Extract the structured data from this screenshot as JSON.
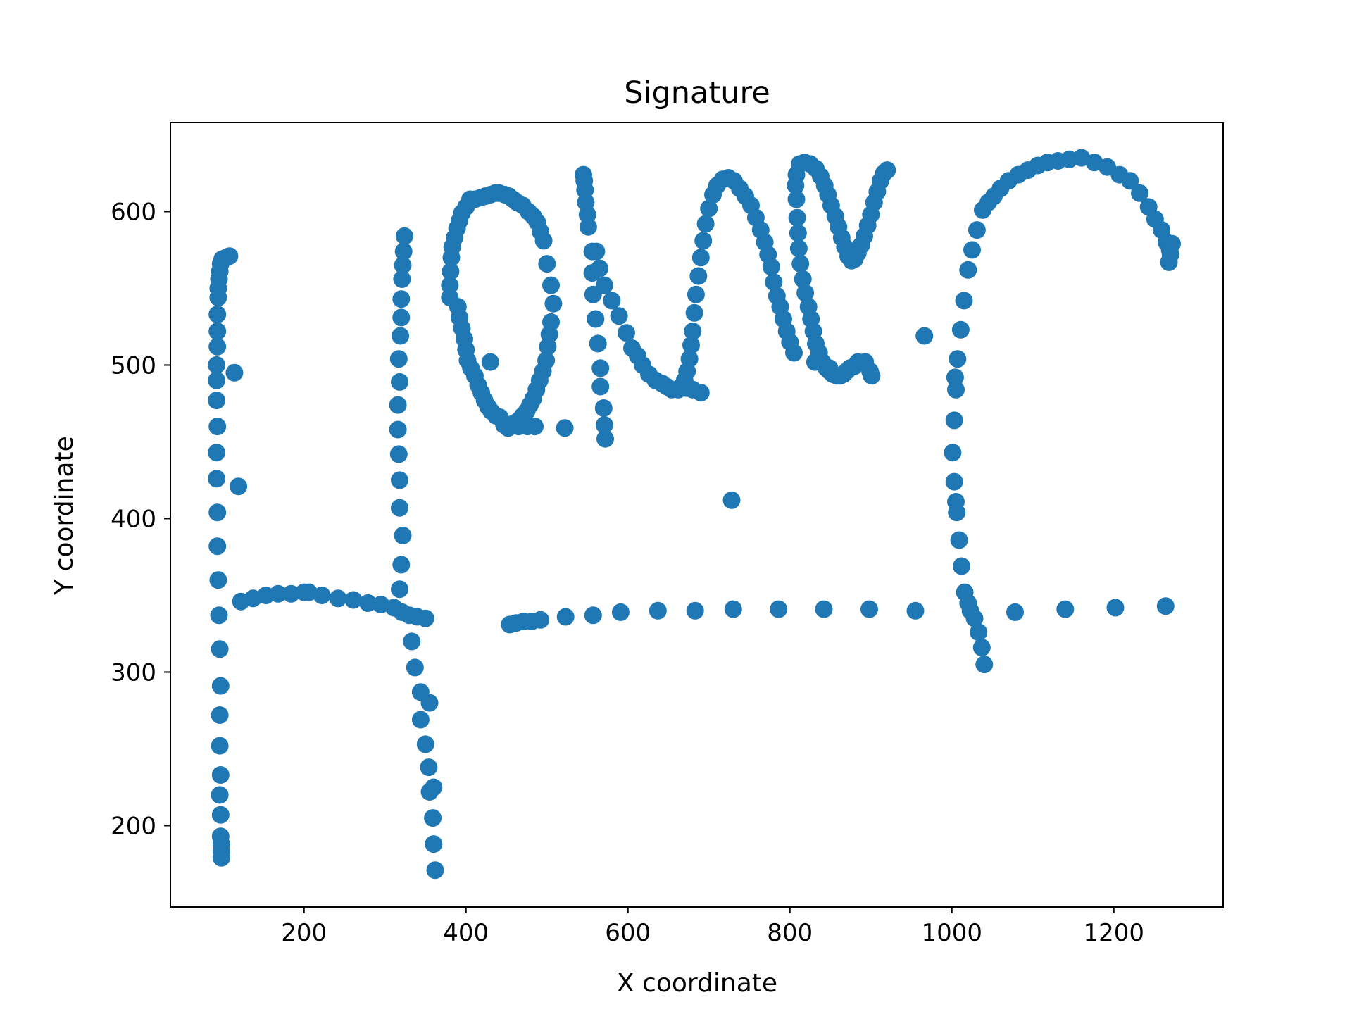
{
  "chart_data": {
    "type": "scatter",
    "title": "Signature",
    "xlabel": "X coordinate",
    "ylabel": "Y coordinate",
    "xlim": [
      35,
      1335
    ],
    "ylim": [
      147,
      658
    ],
    "xticks": [
      200,
      400,
      600,
      800,
      1000,
      1200
    ],
    "yticks": [
      200,
      300,
      400,
      500,
      600
    ],
    "grid": false,
    "marker_color": "#1f77b4",
    "series": [
      {
        "values": [
          [
            98,
            179
          ],
          [
            98,
            183
          ],
          [
            98,
            188
          ],
          [
            97,
            193
          ],
          [
            97,
            207
          ],
          [
            96,
            220
          ],
          [
            97,
            233
          ],
          [
            96,
            252
          ],
          [
            96,
            272
          ],
          [
            97,
            291
          ],
          [
            96,
            315
          ],
          [
            95,
            337
          ],
          [
            94,
            360
          ],
          [
            93,
            382
          ],
          [
            93,
            404
          ],
          [
            92,
            426
          ],
          [
            92,
            443
          ],
          [
            93,
            460
          ],
          [
            92,
            477
          ],
          [
            92,
            490
          ],
          [
            92,
            500
          ],
          [
            93,
            512
          ],
          [
            93,
            522
          ],
          [
            93,
            533
          ],
          [
            94,
            544
          ],
          [
            94,
            550
          ],
          [
            95,
            556
          ],
          [
            96,
            561
          ],
          [
            97,
            566
          ],
          [
            99,
            569
          ],
          [
            104,
            570
          ],
          [
            108,
            571
          ],
          [
            114,
            495
          ],
          [
            119,
            421
          ],
          [
            122,
            346
          ],
          [
            137,
            348
          ],
          [
            153,
            350
          ],
          [
            168,
            351
          ],
          [
            184,
            351
          ],
          [
            200,
            352
          ],
          [
            206,
            352
          ],
          [
            222,
            350
          ],
          [
            242,
            348
          ],
          [
            261,
            347
          ],
          [
            279,
            345
          ],
          [
            295,
            344
          ],
          [
            311,
            342
          ],
          [
            321,
            339
          ],
          [
            330,
            337
          ],
          [
            340,
            336
          ],
          [
            350,
            335
          ],
          [
            362,
            171
          ],
          [
            360,
            188
          ],
          [
            359,
            205
          ],
          [
            360,
            225
          ],
          [
            355,
            222
          ],
          [
            354,
            238
          ],
          [
            350,
            253
          ],
          [
            344,
            269
          ],
          [
            344,
            287
          ],
          [
            355,
            280
          ],
          [
            337,
            303
          ],
          [
            333,
            320
          ],
          [
            318,
            354
          ],
          [
            320,
            370
          ],
          [
            322,
            389
          ],
          [
            318,
            407
          ],
          [
            318,
            425
          ],
          [
            317,
            442
          ],
          [
            316,
            458
          ],
          [
            316,
            474
          ],
          [
            318,
            489
          ],
          [
            317,
            504
          ],
          [
            319,
            519
          ],
          [
            320,
            531
          ],
          [
            320,
            543
          ],
          [
            321,
            556
          ],
          [
            322,
            565
          ],
          [
            323,
            574
          ],
          [
            324,
            584
          ],
          [
            380,
            544
          ],
          [
            380,
            552
          ],
          [
            381,
            561
          ],
          [
            382,
            570
          ],
          [
            383,
            577
          ],
          [
            386,
            583
          ],
          [
            389,
            589
          ],
          [
            392,
            594
          ],
          [
            395,
            599
          ],
          [
            400,
            603
          ],
          [
            405,
            608
          ],
          [
            411,
            608
          ],
          [
            418,
            609
          ],
          [
            424,
            610
          ],
          [
            430,
            611
          ],
          [
            436,
            612
          ],
          [
            441,
            612
          ],
          [
            448,
            611
          ],
          [
            453,
            610
          ],
          [
            458,
            608
          ],
          [
            463,
            606
          ],
          [
            470,
            604
          ],
          [
            477,
            600
          ],
          [
            483,
            597
          ],
          [
            488,
            593
          ],
          [
            492,
            587
          ],
          [
            496,
            581
          ],
          [
            500,
            566
          ],
          [
            505,
            552
          ],
          [
            508,
            540
          ],
          [
            505,
            528
          ],
          [
            503,
            520
          ],
          [
            501,
            512
          ],
          [
            499,
            503
          ],
          [
            495,
            496
          ],
          [
            491,
            490
          ],
          [
            487,
            484
          ],
          [
            483,
            478
          ],
          [
            479,
            474
          ],
          [
            475,
            470
          ],
          [
            470,
            467
          ],
          [
            465,
            464
          ],
          [
            459,
            462
          ],
          [
            452,
            459
          ],
          [
            447,
            461
          ],
          [
            442,
            466
          ],
          [
            437,
            467
          ],
          [
            431,
            470
          ],
          [
            427,
            473
          ],
          [
            423,
            477
          ],
          [
            419,
            482
          ],
          [
            415,
            487
          ],
          [
            411,
            493
          ],
          [
            406,
            498
          ],
          [
            402,
            503
          ],
          [
            400,
            510
          ],
          [
            398,
            517
          ],
          [
            395,
            524
          ],
          [
            392,
            531
          ],
          [
            390,
            538
          ],
          [
            465,
            460
          ],
          [
            476,
            460
          ],
          [
            485,
            460
          ],
          [
            430,
            502
          ],
          [
            522,
            459
          ],
          [
            572,
            452
          ],
          [
            571,
            461
          ],
          [
            570,
            472
          ],
          [
            566,
            486
          ],
          [
            566,
            498
          ],
          [
            563,
            514
          ],
          [
            560,
            530
          ],
          [
            557,
            546
          ],
          [
            556,
            560
          ],
          [
            556,
            574
          ],
          [
            551,
            590
          ],
          [
            550,
            598
          ],
          [
            548,
            606
          ],
          [
            547,
            614
          ],
          [
            546,
            620
          ],
          [
            545,
            624
          ],
          [
            561,
            574
          ],
          [
            565,
            563
          ],
          [
            571,
            552
          ],
          [
            580,
            542
          ],
          [
            589,
            532
          ],
          [
            598,
            521
          ],
          [
            605,
            511
          ],
          [
            612,
            506
          ],
          [
            618,
            500
          ],
          [
            626,
            494
          ],
          [
            634,
            490
          ],
          [
            642,
            488
          ],
          [
            648,
            486
          ],
          [
            654,
            484
          ],
          [
            662,
            484
          ],
          [
            666,
            486
          ],
          [
            670,
            490
          ],
          [
            673,
            496
          ],
          [
            676,
            504
          ],
          [
            678,
            513
          ],
          [
            680,
            522
          ],
          [
            682,
            534
          ],
          [
            684,
            546
          ],
          [
            687,
            558
          ],
          [
            690,
            570
          ],
          [
            693,
            581
          ],
          [
            696,
            592
          ],
          [
            700,
            602
          ],
          [
            705,
            611
          ],
          [
            710,
            617
          ],
          [
            717,
            621
          ],
          [
            724,
            622
          ],
          [
            731,
            620
          ],
          [
            738,
            615
          ],
          [
            745,
            610
          ],
          [
            752,
            604
          ],
          [
            758,
            596
          ],
          [
            764,
            588
          ],
          [
            769,
            580
          ],
          [
            773,
            572
          ],
          [
            777,
            564
          ],
          [
            780,
            554
          ],
          [
            784,
            545
          ],
          [
            788,
            538
          ],
          [
            792,
            530
          ],
          [
            796,
            522
          ],
          [
            800,
            515
          ],
          [
            805,
            508
          ],
          [
            690,
            482
          ],
          [
            680,
            484
          ],
          [
            672,
            485
          ],
          [
            728,
            412
          ],
          [
            812,
            631
          ],
          [
            818,
            632
          ],
          [
            825,
            631
          ],
          [
            832,
            628
          ],
          [
            838,
            623
          ],
          [
            843,
            617
          ],
          [
            847,
            611
          ],
          [
            851,
            604
          ],
          [
            856,
            597
          ],
          [
            860,
            590
          ],
          [
            864,
            583
          ],
          [
            868,
            577
          ],
          [
            872,
            571
          ],
          [
            876,
            568
          ],
          [
            880,
            569
          ],
          [
            884,
            573
          ],
          [
            888,
            578
          ],
          [
            892,
            584
          ],
          [
            896,
            591
          ],
          [
            900,
            598
          ],
          [
            904,
            606
          ],
          [
            908,
            613
          ],
          [
            912,
            620
          ],
          [
            916,
            625
          ],
          [
            920,
            627
          ],
          [
            808,
            624
          ],
          [
            807,
            617
          ],
          [
            808,
            608
          ],
          [
            809,
            596
          ],
          [
            810,
            586
          ],
          [
            811,
            576
          ],
          [
            813,
            566
          ],
          [
            816,
            556
          ],
          [
            819,
            547
          ],
          [
            823,
            538
          ],
          [
            826,
            530
          ],
          [
            829,
            522
          ],
          [
            832,
            514
          ],
          [
            836,
            508
          ],
          [
            840,
            502
          ],
          [
            845,
            498
          ],
          [
            849,
            496
          ],
          [
            853,
            494
          ],
          [
            858,
            493
          ],
          [
            862,
            493
          ],
          [
            866,
            494
          ],
          [
            870,
            496
          ],
          [
            874,
            498
          ],
          [
            879,
            499
          ],
          [
            884,
            502
          ],
          [
            893,
            502
          ],
          [
            899,
            496
          ],
          [
            901,
            493
          ],
          [
            831,
            502
          ],
          [
            849,
            498
          ],
          [
            966,
            519
          ],
          [
            1040,
            305
          ],
          [
            1037,
            316
          ],
          [
            1033,
            326
          ],
          [
            1028,
            335
          ],
          [
            1023,
            340
          ],
          [
            1020,
            345
          ],
          [
            1016,
            352
          ],
          [
            1012,
            369
          ],
          [
            1009,
            386
          ],
          [
            1006,
            404
          ],
          [
            1005,
            411
          ],
          [
            1003,
            424
          ],
          [
            1001,
            443
          ],
          [
            1003,
            464
          ],
          [
            1005,
            484
          ],
          [
            1004,
            492
          ],
          [
            1007,
            504
          ],
          [
            1011,
            523
          ],
          [
            1015,
            542
          ],
          [
            1020,
            562
          ],
          [
            1025,
            575
          ],
          [
            1031,
            588
          ],
          [
            1038,
            601
          ],
          [
            1045,
            606
          ],
          [
            1052,
            610
          ],
          [
            1060,
            615
          ],
          [
            1070,
            620
          ],
          [
            1082,
            624
          ],
          [
            1094,
            627
          ],
          [
            1106,
            630
          ],
          [
            1118,
            632
          ],
          [
            1131,
            633
          ],
          [
            1145,
            634
          ],
          [
            1160,
            635
          ],
          [
            1176,
            632
          ],
          [
            1192,
            629
          ],
          [
            1207,
            624
          ],
          [
            1220,
            620
          ],
          [
            1232,
            612
          ],
          [
            1243,
            603
          ],
          [
            1251,
            595
          ],
          [
            1259,
            588
          ],
          [
            1265,
            580
          ],
          [
            1269,
            575
          ],
          [
            1270,
            572
          ],
          [
            1268,
            567
          ],
          [
            1272,
            579
          ],
          [
            454,
            331
          ],
          [
            462,
            332
          ],
          [
            471,
            333
          ],
          [
            481,
            333
          ],
          [
            492,
            334
          ],
          [
            523,
            336
          ],
          [
            557,
            337
          ],
          [
            591,
            339
          ],
          [
            637,
            340
          ],
          [
            683,
            340
          ],
          [
            730,
            341
          ],
          [
            786,
            341
          ],
          [
            842,
            341
          ],
          [
            898,
            341
          ],
          [
            955,
            340
          ],
          [
            1078,
            339
          ],
          [
            1140,
            341
          ],
          [
            1202,
            342
          ],
          [
            1264,
            343
          ]
        ]
      }
    ]
  }
}
